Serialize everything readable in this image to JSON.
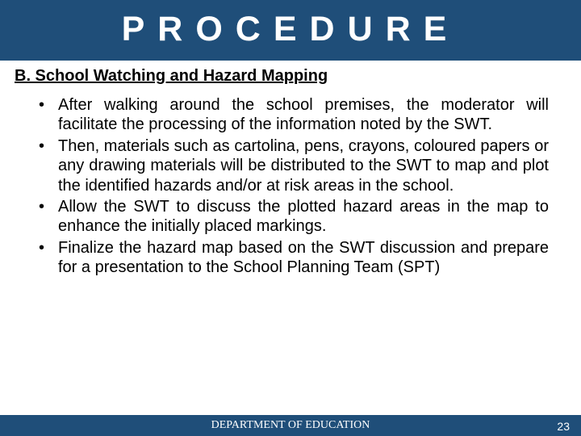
{
  "colors": {
    "header_bg": "#1f4e79",
    "header_text": "#ffffff",
    "body_text": "#000000",
    "footer_bg": "#1f4e79",
    "footer_text": "#ffffff",
    "page_bg": "#ffffff"
  },
  "header": {
    "title": "PROCEDURE"
  },
  "section": {
    "title": "B. School Watching and Hazard Mapping"
  },
  "bullets": [
    "After walking around the school premises, the moderator will facilitate the processing of the information noted by the SWT.",
    "Then, materials such as cartolina, pens, crayons, coloured papers or any drawing materials will be distributed to the SWT to map and plot the identified hazards and/or at risk areas in the school.",
    "Allow the SWT to discuss the plotted hazard areas in the map to enhance the initially placed markings.",
    "Finalize the hazard map based on the SWT discussion and prepare for a presentation to the School Planning Team (SPT)"
  ],
  "footer": {
    "text": "DEPARTMENT OF EDUCATION",
    "page_number": "23"
  }
}
